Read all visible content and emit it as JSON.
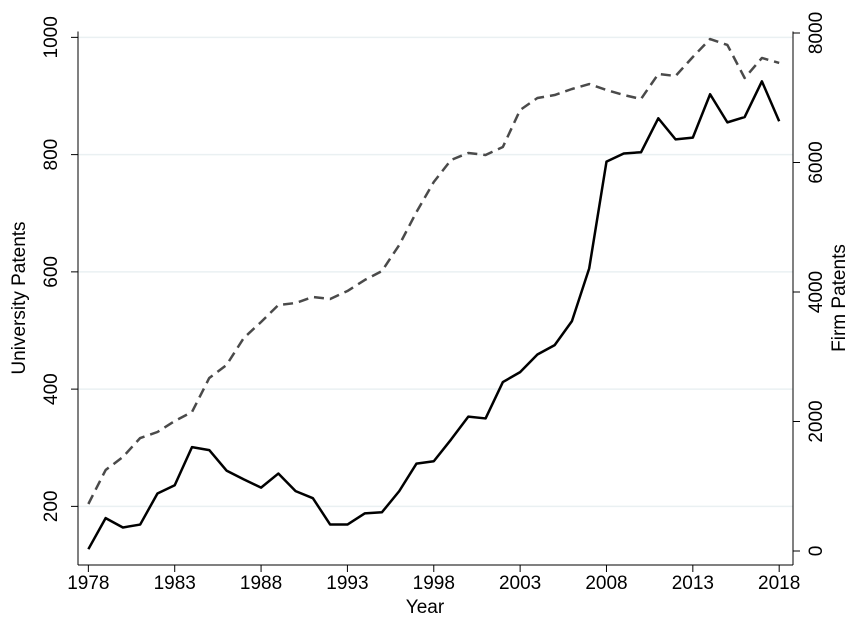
{
  "chart_data": {
    "type": "line",
    "x_label": "Year",
    "y_label": "University Patents",
    "y2_label": "Firm Patents",
    "x": [
      1978,
      1979,
      1980,
      1981,
      1982,
      1983,
      1984,
      1985,
      1986,
      1987,
      1988,
      1989,
      1990,
      1991,
      1992,
      1993,
      1994,
      1995,
      1996,
      1997,
      1998,
      1999,
      2000,
      2001,
      2002,
      2003,
      2004,
      2005,
      2006,
      2007,
      2008,
      2009,
      2010,
      2011,
      2012,
      2013,
      2014,
      2015,
      2016,
      2017,
      2018
    ],
    "series": [
      {
        "color": "#000000",
        "line_style": "solid",
        "axis": "y",
        "values": [
          127,
          180,
          164,
          169,
          222,
          236,
          301,
          296,
          261,
          246,
          232,
          256,
          226,
          214,
          169,
          169,
          188,
          190,
          226,
          273,
          277,
          314,
          353,
          350,
          412,
          429,
          459,
          475,
          516,
          606,
          788,
          802,
          804,
          862,
          826,
          829,
          903,
          855,
          864,
          925,
          857
        ]
      },
      {
        "color": "#4a4a4a",
        "line_style": "dashed",
        "axis": "y2",
        "values": [
          726,
          1251,
          1452,
          1745,
          1838,
          2008,
          2147,
          2672,
          2873,
          3290,
          3537,
          3799,
          3830,
          3923,
          3892,
          4015,
          4185,
          4324,
          4726,
          5236,
          5699,
          6039,
          6147,
          6116,
          6239,
          6811,
          6996,
          7042,
          7135,
          7212,
          7120,
          7042,
          6981,
          7367,
          7336,
          7629,
          7907,
          7815,
          7305,
          7614,
          7537
        ]
      }
    ],
    "xlim": [
      1977.4,
      2018.8
    ],
    "xticks": [
      1978,
      1983,
      1988,
      1993,
      1998,
      2003,
      2008,
      2013,
      2018
    ],
    "ylim": [
      100,
      1010
    ],
    "yticks": [
      200,
      400,
      600,
      800,
      1000
    ],
    "y2lim": [
      -216,
      8023
    ],
    "y2ticks": [
      0,
      2000,
      4000,
      6000,
      8000
    ],
    "grid": true
  }
}
